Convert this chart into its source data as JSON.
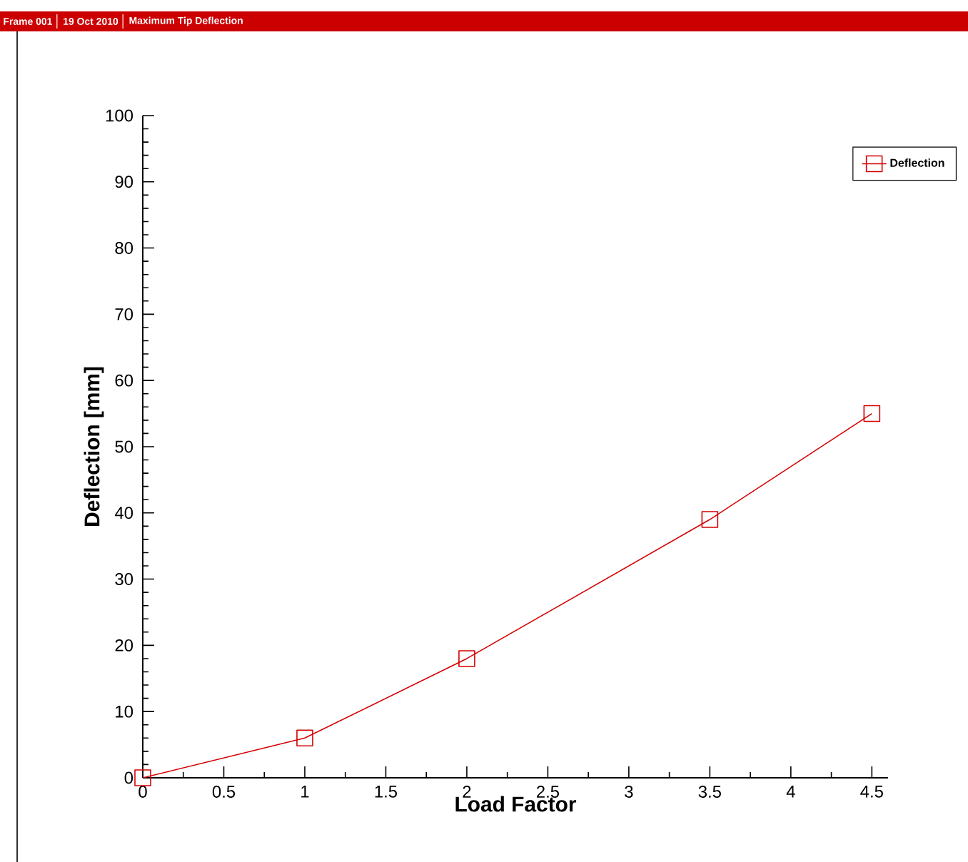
{
  "chart_data": {
    "type": "line",
    "title": "Maximum Tip Deflection",
    "annotations": [
      "Frame 001",
      "19 Oct 2010"
    ],
    "xlabel": "Load Factor",
    "ylabel": "Deflection [mm]",
    "x": [
      0,
      1,
      2,
      3.5,
      4.5
    ],
    "series": [
      {
        "name": "Deflection",
        "color": "#d40000",
        "values": [
          0,
          6,
          18,
          39,
          55
        ]
      }
    ],
    "xlim": [
      0,
      4.6
    ],
    "ylim": [
      0,
      100
    ],
    "xticks": [
      0,
      0.5,
      1,
      1.5,
      2,
      2.5,
      3,
      3.5,
      4,
      4.5
    ],
    "yticks": [
      0,
      10,
      20,
      30,
      40,
      50,
      60,
      70,
      80,
      90,
      100
    ],
    "legend": "top right",
    "marker": "square",
    "line_style": "solid"
  }
}
